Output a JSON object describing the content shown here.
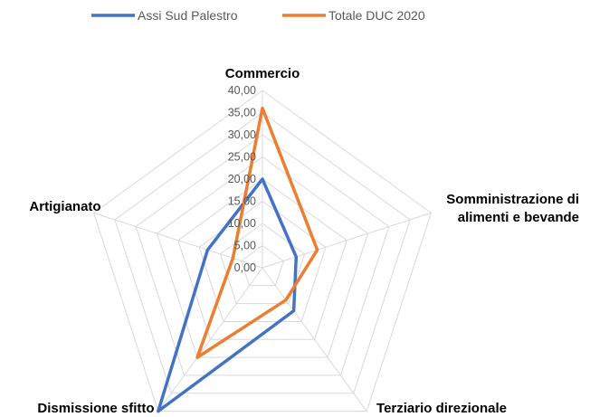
{
  "chart_data": {
    "type": "radar",
    "categories": [
      "Commercio",
      "Somministrazione di alimenti e bevande",
      "Terziario direzionale",
      "Dismissione sfitto",
      "Artigianato"
    ],
    "category_label_lines": [
      [
        "Commercio"
      ],
      [
        "Somministrazione di",
        "alimenti e bevande"
      ],
      [
        "Terziario direzionale"
      ],
      [
        "Dismissione sfitto"
      ],
      [
        "Artigianato"
      ]
    ],
    "series": [
      {
        "name": "Assi Sud Palestro",
        "color": "#4472C4",
        "values": [
          20.0,
          8.0,
          12.0,
          40.0,
          13.0
        ]
      },
      {
        "name": "Totale DUC 2020",
        "color": "#ED7D31",
        "values": [
          36.0,
          13.0,
          9.0,
          25.0,
          7.0
        ]
      }
    ],
    "ticks": [
      "0,00",
      "5,00",
      "10,00",
      "15,00",
      "20,00",
      "25,00",
      "30,00",
      "35,00",
      "40,00"
    ],
    "tick_values": [
      0,
      5,
      10,
      15,
      20,
      25,
      30,
      35,
      40
    ],
    "rlim": [
      0,
      40
    ],
    "grid": true,
    "grid_color": "#d9d9d9",
    "legend_position": "top"
  }
}
